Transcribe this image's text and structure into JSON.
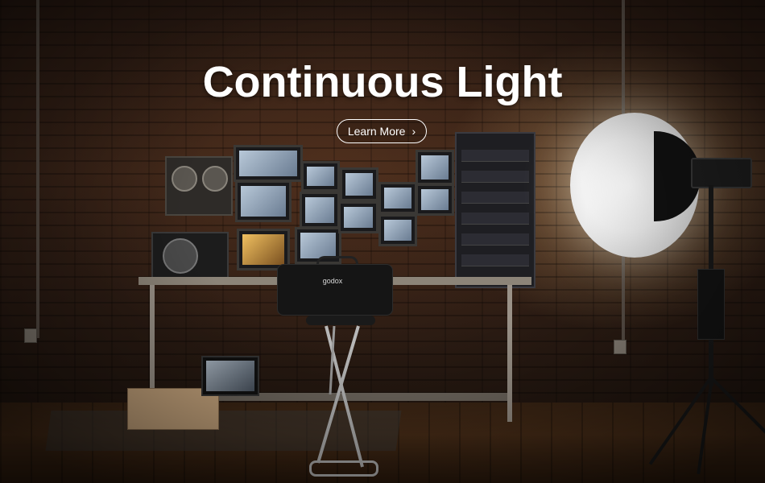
{
  "hero": {
    "headline": "Continuous Light",
    "cta_label": "Learn More",
    "cta_icon": "chevron-right-icon",
    "cta_glyph": "›",
    "bag_brand": "godox"
  },
  "colors": {
    "text": "#ffffff",
    "wall": "#3a2418",
    "floor": "#4a2e18"
  }
}
